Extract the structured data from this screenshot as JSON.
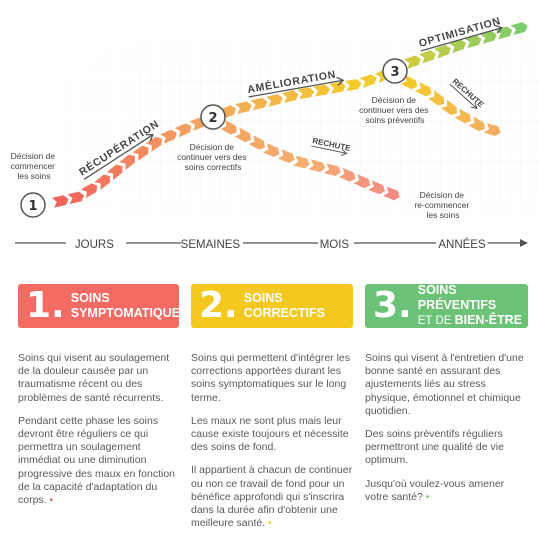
{
  "diagram": {
    "timeline": {
      "labels": [
        "JOURS",
        "SEMAINES",
        "MOIS",
        "ANNÉES"
      ]
    },
    "milestones": [
      {
        "number": "1",
        "label_lines": [
          "Décision de",
          "commencer",
          "les soins"
        ]
      },
      {
        "number": "2",
        "label_lines": [
          "Décision de",
          "continuer vers des",
          "soins correctifs"
        ]
      },
      {
        "number": "3",
        "label_lines": [
          "Décision de",
          "continuer vers des",
          "soins préventifs"
        ]
      }
    ],
    "phases": {
      "recovery": "RÉCUPÉRATION",
      "improvement": "AMÉLIORATION",
      "optimization": "OPTIMISATION"
    },
    "relapse": [
      {
        "label": "RECHUTE"
      },
      {
        "label": "RECHUTE"
      }
    ],
    "restart_label_lines": [
      "Décision de",
      "re-commencer",
      "les soins"
    ],
    "colors": {
      "red": "#f0605d",
      "orange": "#f4a460",
      "yellow": "#f5cc2a",
      "green": "#7ccc6b"
    }
  },
  "cards": [
    {
      "number": "1.",
      "title_line1": "SOINS",
      "title_line2": "SYMPTOMATIQUES",
      "color": "#f36b63"
    },
    {
      "number": "2.",
      "title_line1": "SOINS",
      "title_line2": "CORRECTIFS",
      "color": "#f3c81f"
    },
    {
      "number": "3.",
      "title_line1": "SOINS PRÉVENTIFS",
      "title_line2_light": "ET DE ",
      "title_line2_bold": "BIEN-ÊTRE",
      "color": "#6cc377"
    }
  ],
  "columns": [
    {
      "paragraphs": [
        "Soins qui visent au soulagement de la douleur causée par un traumatisme récent ou des problèmes de santé récurrents.",
        "Pendant cette phase les soins devront être réguliers ce qui permettra un soulagement immédiat ou une diminution progressive des maux en fonction de la capacité d'adaptation du corps."
      ],
      "dot": "•"
    },
    {
      "paragraphs": [
        "Soins qui permettent d'intégrer les corrections apportées durant les soins symptomatiques sur le long terme.",
        "Les maux ne sont plus mais leur cause existe toujours et nécessite des soins de fond.",
        "Il appartient à chacun de continuer ou non ce travail de fond pour un bénéfice approfondi qui s'inscrira dans la durée afin d'obtenir une meilleure santé."
      ],
      "dot": "•"
    },
    {
      "paragraphs": [
        "Soins qui visent à l'entretien d'une bonne santé en assurant des ajustements liés au stress physique, émotionnel et chimique quotidien.",
        "Des soins préventifs réguliers permettront une qualité de vie optimum.",
        "Jusqu'où voulez-vous amener votre santé?"
      ],
      "dot": "•"
    }
  ]
}
